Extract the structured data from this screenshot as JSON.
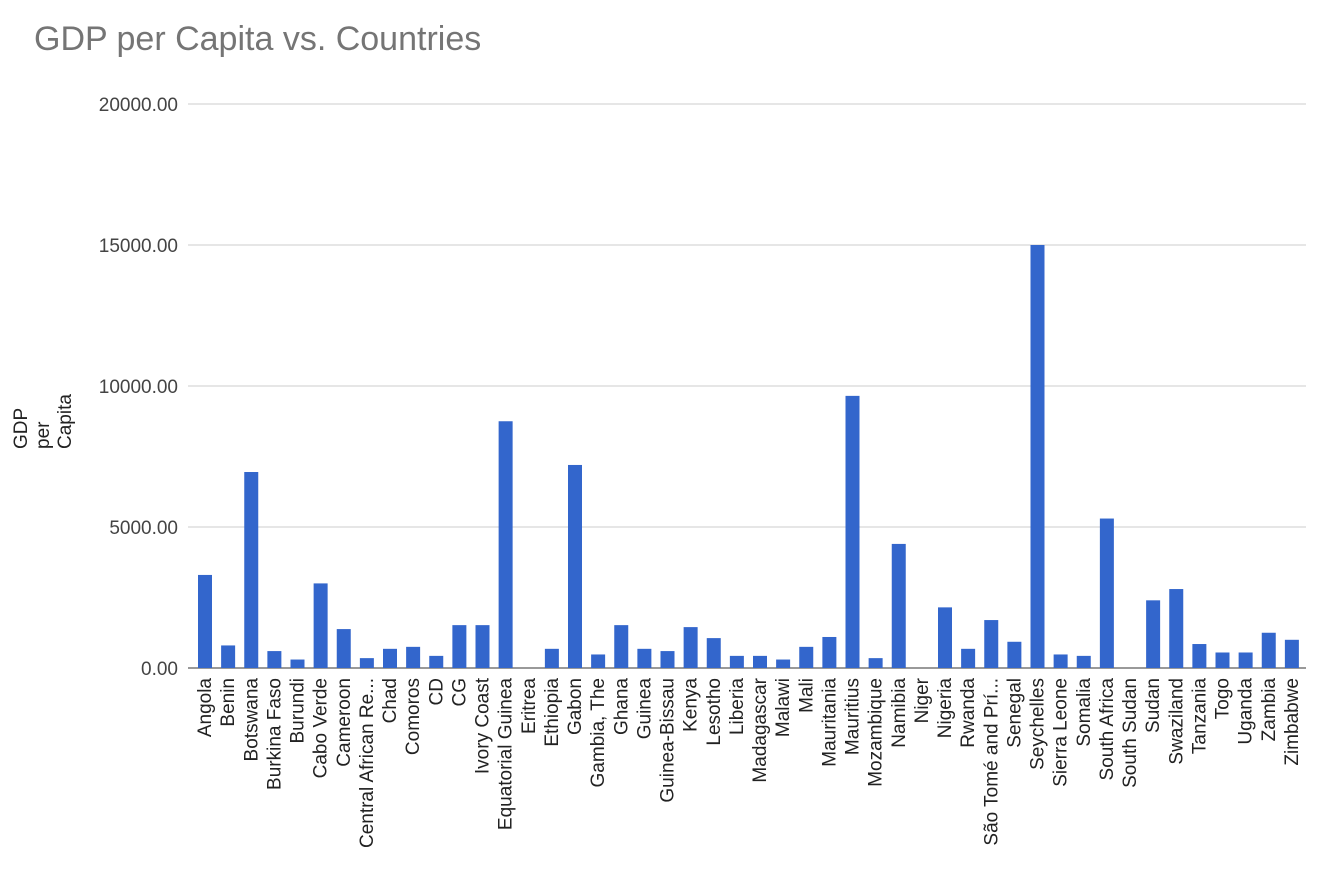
{
  "chart_data": {
    "type": "bar",
    "title": "GDP per Capita vs. Countries",
    "xlabel": "",
    "ylabel": "GDP per Capita",
    "ylim": [
      0,
      20000
    ],
    "yticks": [
      "0.00",
      "5000.00",
      "10000.00",
      "15000.00",
      "20000.00"
    ],
    "grid": true,
    "color": "#3366cc",
    "categories": [
      "Angola",
      "Benin",
      "Botswana",
      "Burkina Faso",
      "Burundi",
      "Cabo Verde",
      "Cameroon",
      "Central African Re...",
      "Chad",
      "Comoros",
      "CD",
      "CG",
      "Ivory Coast",
      "Equatorial Guinea",
      "Eritrea",
      "Ethiopia",
      "Gabon",
      "Gambia, The",
      "Ghana",
      "Guinea",
      "Guinea-Bissau",
      "Kenya",
      "Lesotho",
      "Liberia",
      "Madagascar",
      "Malawi",
      "Mali",
      "Mauritania",
      "Mauritius",
      "Mozambique",
      "Namibia",
      "Niger",
      "Nigeria",
      "Rwanda",
      "São Tomé and Prí...",
      "Senegal",
      "Seychelles",
      "Sierra Leone",
      "Somalia",
      "South Africa",
      "South Sudan",
      "Sudan",
      "Swaziland",
      "Tanzania",
      "Togo",
      "Uganda",
      "Zambia",
      "Zimbabwe"
    ],
    "values": [
      3300,
      800,
      6950,
      600,
      300,
      3000,
      1380,
      350,
      680,
      750,
      430,
      1520,
      1520,
      8750,
      0,
      680,
      7200,
      480,
      1520,
      680,
      600,
      1450,
      1060,
      430,
      430,
      300,
      750,
      1100,
      9650,
      350,
      4400,
      0,
      2150,
      680,
      1700,
      930,
      15000,
      480,
      430,
      5300,
      0,
      2400,
      2800,
      850,
      550,
      550,
      1250,
      1000
    ]
  }
}
